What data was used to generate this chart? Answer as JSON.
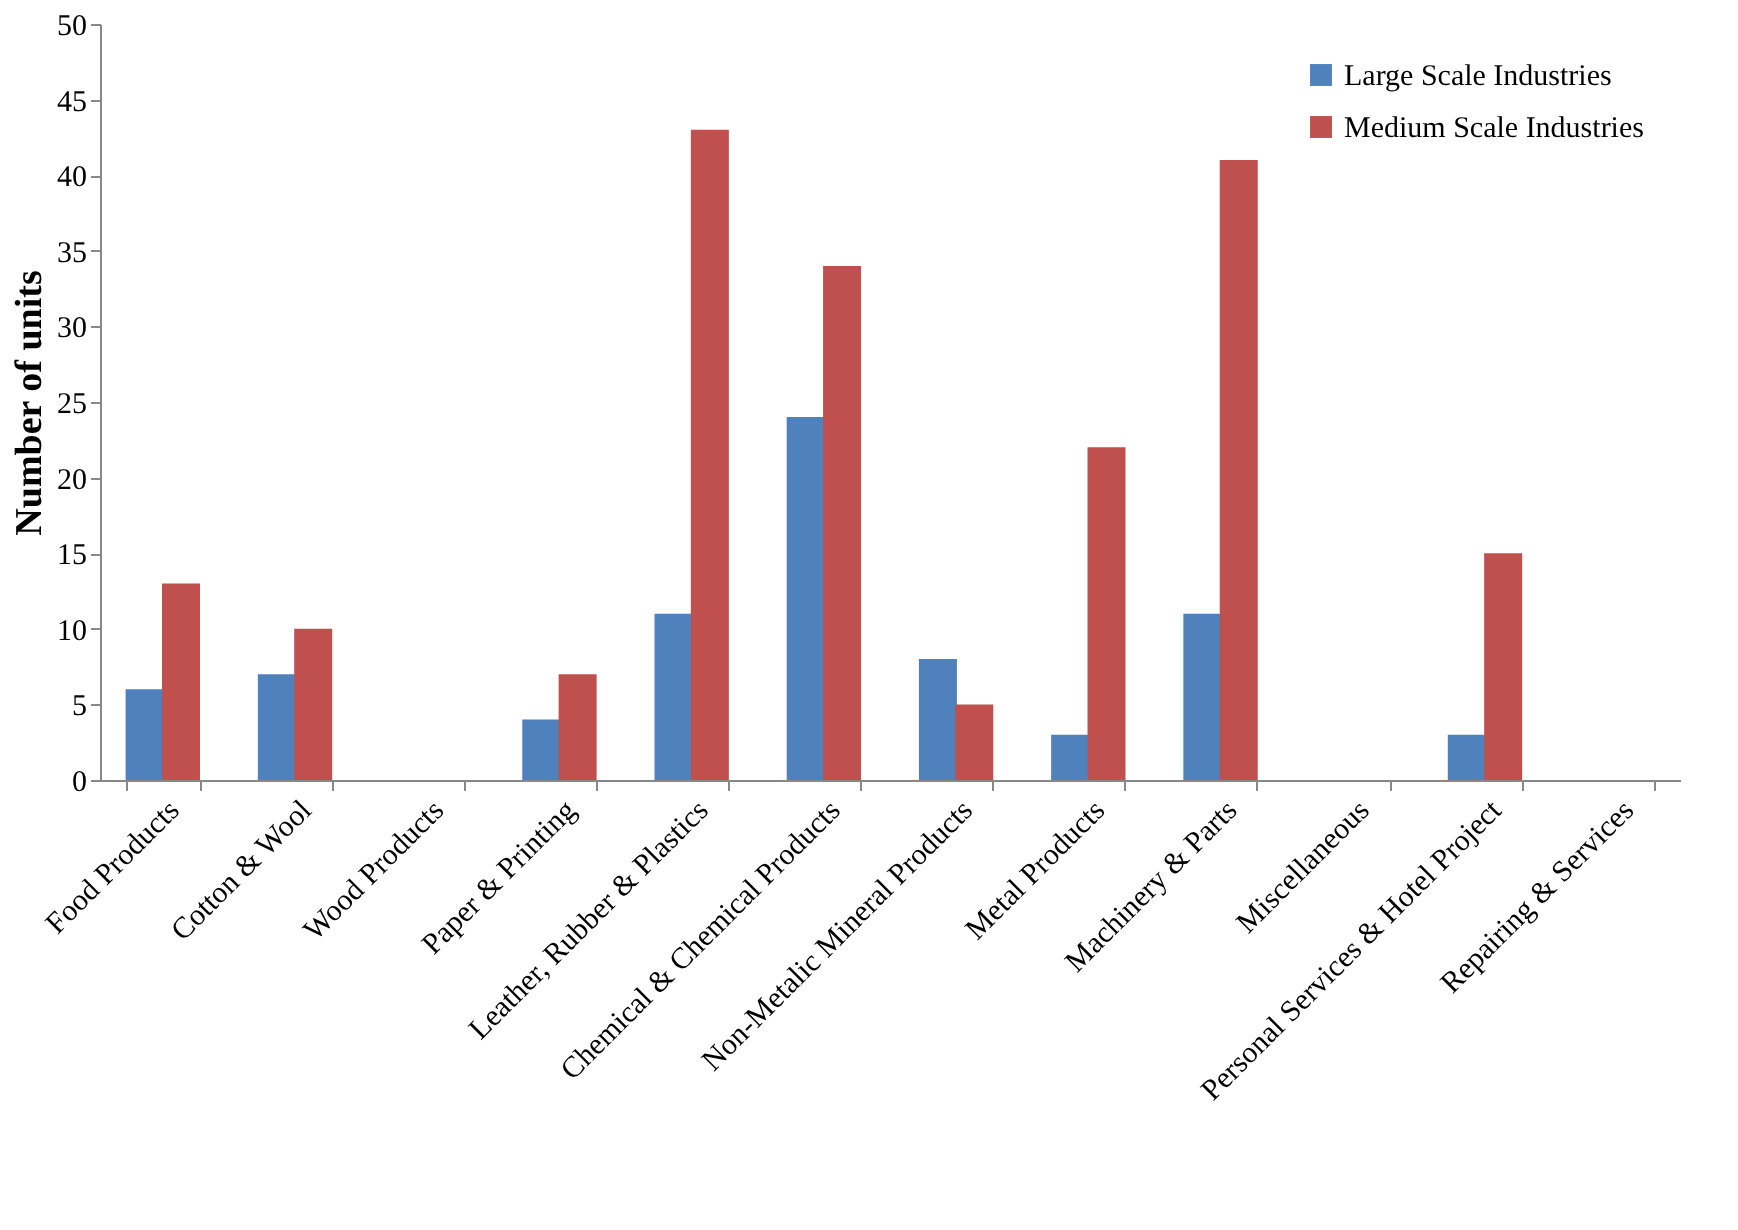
{
  "chart_data": {
    "type": "bar",
    "ylabel": "Number of units",
    "categories": [
      "Food Products",
      "Cotton & Wool",
      "Wood Products",
      "Paper & Printing",
      "Leather, Rubber & Plastics",
      "Chemical & Chemical Products",
      "Non-Metalic Mineral Products",
      "Metal Products",
      "Machinery & Parts",
      "Miscellaneous",
      "Personal Services & Hotel Project",
      "Repairing & Services"
    ],
    "series": [
      {
        "name": "Large Scale Industries",
        "color": "#4f81bd",
        "values": [
          6,
          7,
          0,
          4,
          11,
          24,
          8,
          3,
          11,
          0,
          3,
          0
        ]
      },
      {
        "name": "Medium Scale Industries",
        "color": "#c0504d",
        "values": [
          13,
          10,
          0,
          7,
          43,
          34,
          5,
          22,
          41,
          0,
          15,
          0
        ]
      }
    ],
    "ylim": [
      0,
      50
    ],
    "yticks": [
      0,
      5,
      10,
      15,
      20,
      25,
      30,
      35,
      40,
      45,
      50
    ],
    "grid": false,
    "legend": "top right"
  }
}
